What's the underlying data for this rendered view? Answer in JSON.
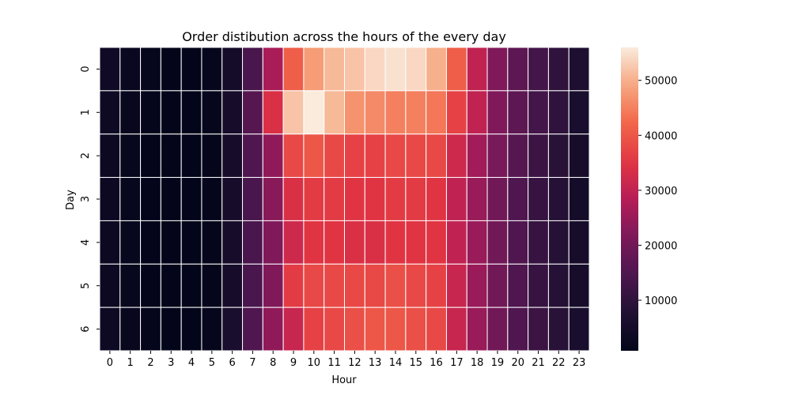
{
  "chart_data": {
    "type": "heatmap",
    "title": "Order distibution across the hours of the every day",
    "xlabel": "Hour",
    "ylabel": "Day",
    "x_categories": [
      "0",
      "1",
      "2",
      "3",
      "4",
      "5",
      "6",
      "7",
      "8",
      "9",
      "10",
      "11",
      "12",
      "13",
      "14",
      "15",
      "16",
      "17",
      "18",
      "19",
      "20",
      "21",
      "22",
      "23"
    ],
    "y_categories": [
      "0",
      "1",
      "2",
      "3",
      "4",
      "5",
      "6"
    ],
    "values": [
      [
        4000,
        2500,
        1500,
        1000,
        1000,
        1500,
        5000,
        14000,
        27000,
        41000,
        48000,
        51000,
        52000,
        54000,
        55000,
        54000,
        50000,
        41000,
        30000,
        22000,
        17000,
        13000,
        10000,
        7000
      ],
      [
        3500,
        2000,
        1200,
        900,
        900,
        1400,
        5500,
        16000,
        34000,
        52000,
        56000,
        51000,
        47000,
        46000,
        45000,
        45000,
        44000,
        37000,
        30000,
        22000,
        17000,
        13000,
        10000,
        6000
      ],
      [
        3000,
        1800,
        1000,
        800,
        800,
        1300,
        5500,
        15000,
        24000,
        38000,
        40000,
        38000,
        37000,
        37000,
        38000,
        38000,
        38000,
        32000,
        26000,
        21000,
        16000,
        12000,
        9000,
        5500
      ],
      [
        3000,
        1700,
        1000,
        800,
        800,
        1300,
        5500,
        14000,
        23000,
        34000,
        36000,
        36000,
        35000,
        35000,
        36000,
        36000,
        35000,
        30000,
        25000,
        20000,
        15000,
        11000,
        8500,
        5000
      ],
      [
        3000,
        1800,
        1000,
        800,
        800,
        1300,
        5500,
        14000,
        22000,
        32000,
        35000,
        35000,
        34000,
        34000,
        35000,
        35000,
        35000,
        30000,
        25000,
        20000,
        15000,
        11000,
        8500,
        5500
      ],
      [
        3000,
        1800,
        1000,
        800,
        800,
        1300,
        5500,
        14000,
        22000,
        36000,
        38000,
        38000,
        38000,
        38000,
        39000,
        38000,
        37000,
        31000,
        25000,
        20000,
        15000,
        11000,
        8500,
        5500
      ],
      [
        3500,
        2000,
        1200,
        900,
        900,
        1400,
        6000,
        15000,
        24000,
        31000,
        37000,
        38000,
        39000,
        40000,
        40000,
        39000,
        38000,
        31000,
        25000,
        20000,
        15000,
        12000,
        9000,
        6000
      ]
    ],
    "colorbar": {
      "vmin": 800,
      "vmax": 56000,
      "ticks": [
        10000,
        20000,
        30000,
        40000,
        50000
      ],
      "tick_labels": [
        "10000",
        "20000",
        "30000",
        "40000",
        "50000"
      ],
      "colormap": "rocket"
    },
    "grid": false,
    "legend": "colorbar-right"
  }
}
